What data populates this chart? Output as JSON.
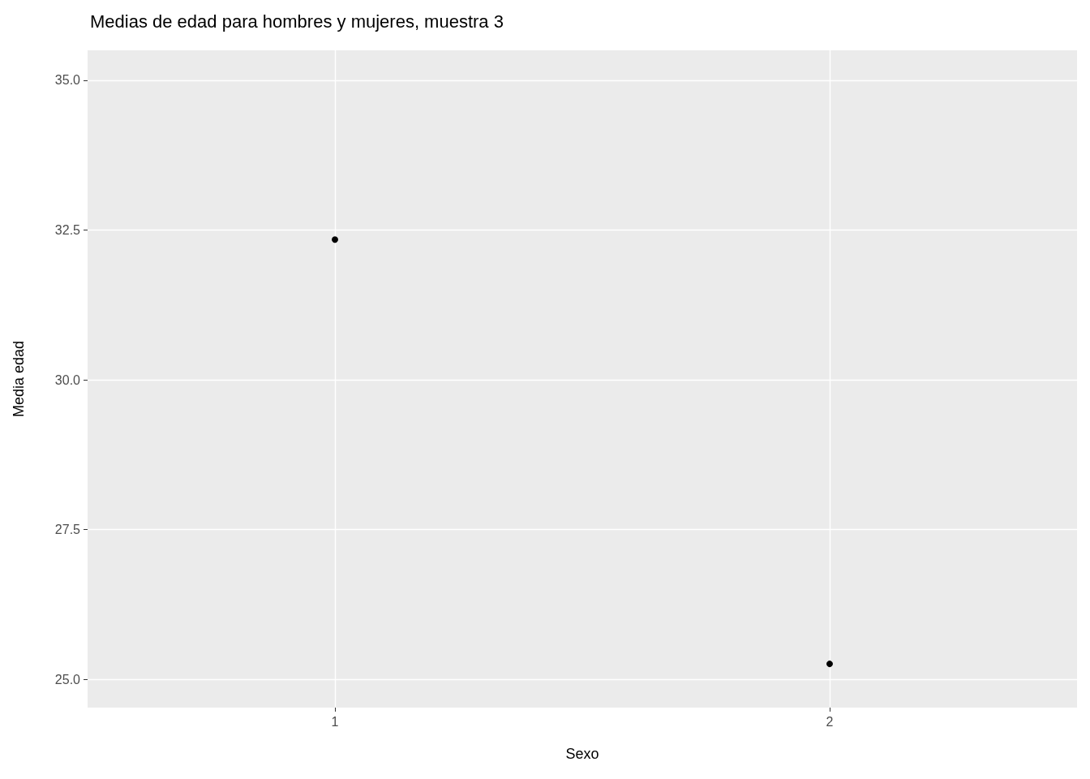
{
  "chart_data": {
    "type": "scatter",
    "title": "Medias de edad para hombres y mujeres, muestra 3",
    "xlabel": "Sexo",
    "ylabel": "Media edad",
    "categories": [
      "1",
      "2"
    ],
    "series": [
      {
        "color": "#000000",
        "values": [
          32.34,
          25.26
        ]
      }
    ],
    "ylim": [
      24.53,
      35.5
    ],
    "yticks": [
      {
        "value": 25,
        "label": "25.0"
      },
      {
        "value": 27.5,
        "label": "27.5"
      },
      {
        "value": 30,
        "label": "30.0"
      },
      {
        "value": 32.5,
        "label": "32.5"
      },
      {
        "value": 35,
        "label": "35.0"
      }
    ],
    "grid": true,
    "marker": "circle"
  }
}
